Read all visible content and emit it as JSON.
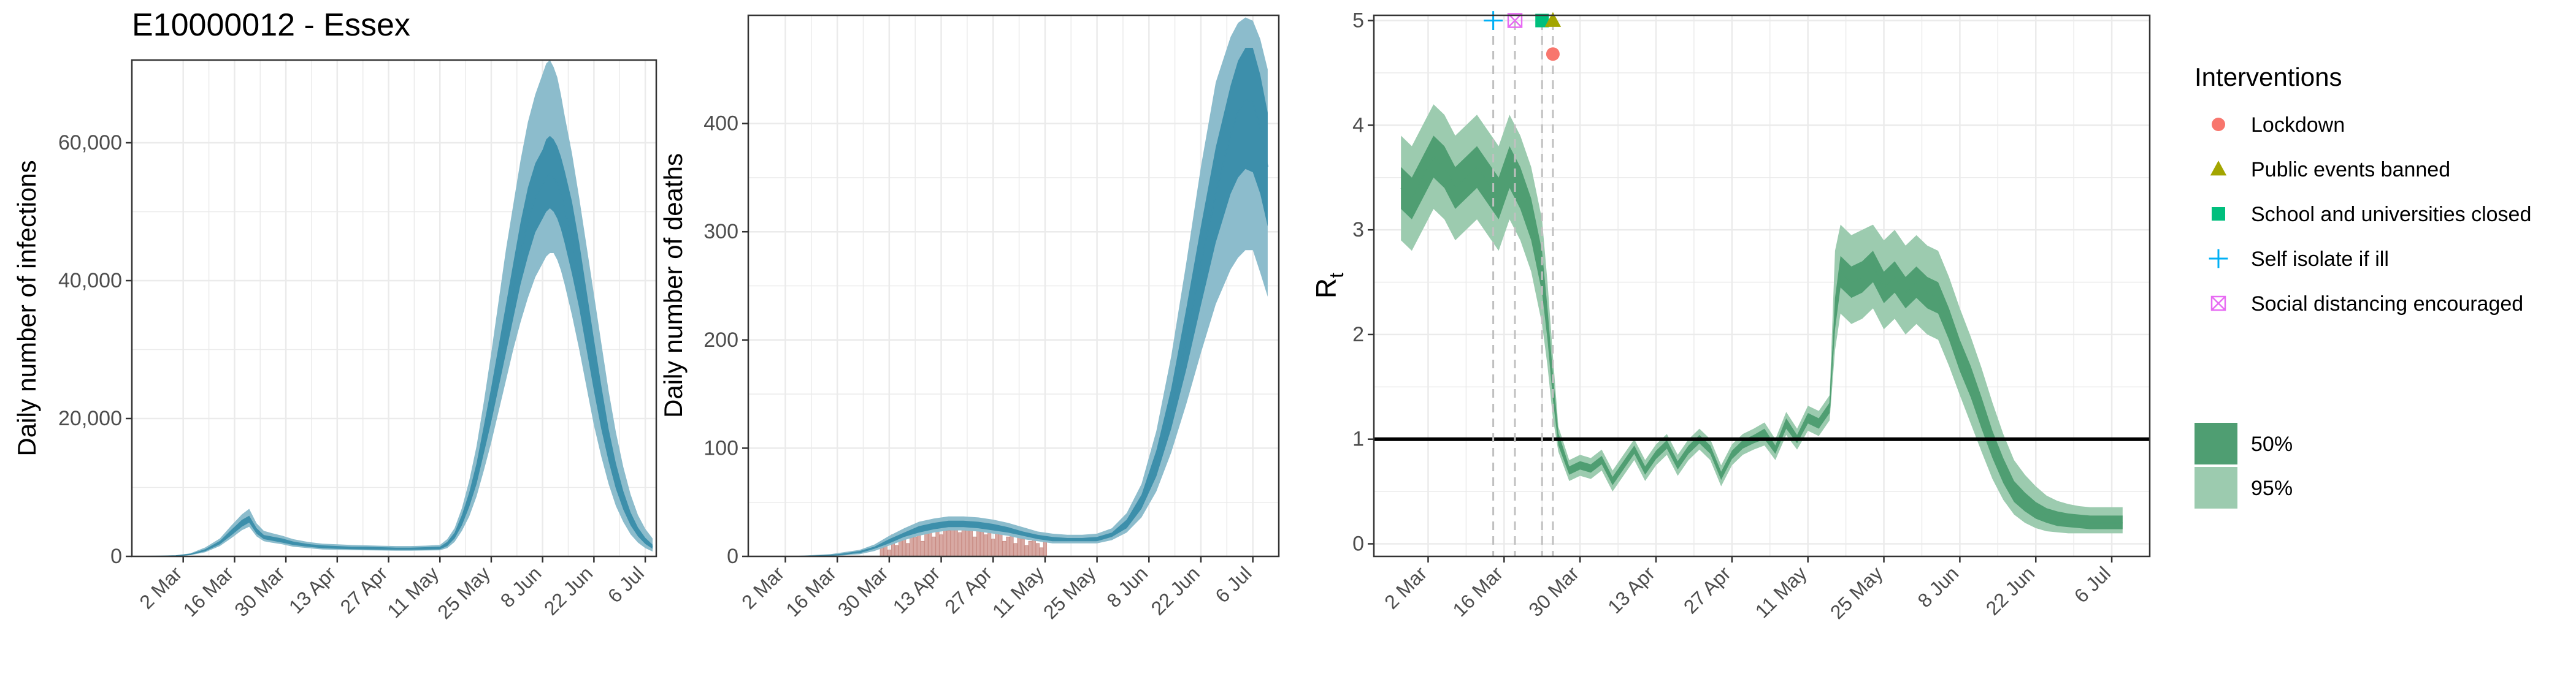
{
  "colors": {
    "infection_outer": "#8cbccc",
    "infection_inner": "#3d8fab",
    "deaths_bar": "#d8a9a3",
    "deaths_bar_outline": "#c88a82",
    "rt_outer": "#9ccbaf",
    "rt_inner": "#4f9e72",
    "grid": "#ebebeb",
    "rt_one_line": "#000000",
    "intervention_line": "#c0c0c0",
    "lockdown": "#f8766d",
    "public_events": "#a3a500",
    "schools": "#00bf7d",
    "self_isolate": "#00b0f6",
    "social_distancing": "#e76bf3"
  },
  "chart_data": [
    {
      "id": "infections",
      "type": "area",
      "title": "E10000012 - Essex",
      "xlabel": "",
      "ylabel": "Daily number of infections",
      "x_tick_labels": [
        "2 Mar",
        "16 Mar",
        "30 Mar",
        "13 Apr",
        "27 Apr",
        "11 May",
        "25 May",
        "8 Jun",
        "22 Jun",
        "6 Jul"
      ],
      "x_tick_days": [
        0,
        14,
        28,
        42,
        56,
        70,
        84,
        98,
        112,
        126
      ],
      "xlim_days": [
        -14,
        129
      ],
      "ylim": [
        0,
        72000
      ],
      "y_ticks": [
        0,
        20000,
        40000,
        60000
      ],
      "y_tick_labels": [
        "0",
        "20,000",
        "40,000",
        "60,000"
      ],
      "x_days": [
        -10,
        -6,
        -2,
        2,
        6,
        10,
        13,
        16,
        18,
        20,
        22,
        24,
        27,
        30,
        34,
        38,
        42,
        46,
        50,
        54,
        58,
        62,
        66,
        70,
        72,
        74,
        76,
        78,
        80,
        82,
        84,
        86,
        88,
        90,
        92,
        94,
        96,
        98,
        99,
        100,
        101,
        102,
        103,
        104,
        106,
        108,
        110,
        112,
        114,
        116,
        118,
        120,
        122,
        124,
        126,
        128
      ],
      "mean": [
        0,
        20,
        80,
        300,
        900,
        2000,
        3400,
        4800,
        5400,
        3700,
        2800,
        2600,
        2300,
        1900,
        1600,
        1400,
        1300,
        1200,
        1200,
        1150,
        1100,
        1100,
        1150,
        1200,
        1800,
        3000,
        5200,
        8200,
        12000,
        17000,
        22000,
        27500,
        33000,
        38500,
        44000,
        48500,
        52000,
        54000,
        55000,
        55500,
        55000,
        54000,
        52500,
        50500,
        46000,
        40500,
        34000,
        27500,
        21500,
        16000,
        11500,
        8000,
        5400,
        3500,
        2200,
        1400
      ],
      "ci50_low": [
        0,
        15,
        60,
        240,
        750,
        1750,
        3000,
        4300,
        4900,
        3300,
        2500,
        2300,
        2000,
        1650,
        1400,
        1200,
        1100,
        1050,
        1000,
        980,
        950,
        950,
        980,
        1020,
        1500,
        2600,
        4500,
        7200,
        10500,
        15000,
        19500,
        24500,
        29500,
        34500,
        39500,
        43500,
        47000,
        49000,
        50000,
        50500,
        50000,
        49000,
        47500,
        45500,
        41000,
        36000,
        30000,
        24000,
        18500,
        13800,
        9800,
        6800,
        4500,
        2900,
        1800,
        1100
      ],
      "ci50_high": [
        0,
        25,
        100,
        360,
        1050,
        2250,
        3800,
        5300,
        5900,
        4100,
        3100,
        2900,
        2600,
        2150,
        1800,
        1600,
        1500,
        1400,
        1400,
        1330,
        1270,
        1270,
        1330,
        1400,
        2100,
        3450,
        6000,
        9300,
        13500,
        19000,
        24500,
        30500,
        36500,
        42500,
        48500,
        53500,
        57000,
        59000,
        60500,
        61000,
        60500,
        59500,
        58000,
        56000,
        51500,
        45500,
        38500,
        31500,
        24800,
        18500,
        13500,
        9500,
        6400,
        4200,
        2700,
        1700
      ],
      "ci95_low": [
        0,
        10,
        40,
        180,
        600,
        1500,
        2600,
        3800,
        4300,
        2900,
        2200,
        2000,
        1750,
        1400,
        1200,
        1000,
        950,
        900,
        880,
        850,
        820,
        820,
        850,
        880,
        1200,
        2100,
        3700,
        5800,
        8700,
        12500,
        16500,
        21000,
        25500,
        30000,
        34000,
        37500,
        40500,
        42500,
        43500,
        44000,
        44000,
        43000,
        41500,
        39500,
        35000,
        30000,
        24500,
        19000,
        14500,
        10500,
        7300,
        5000,
        3200,
        2000,
        1200,
        700
      ],
      "ci95_high": [
        0,
        35,
        130,
        450,
        1300,
        2600,
        4400,
        6100,
        6900,
        4800,
        3700,
        3400,
        3000,
        2500,
        2100,
        1850,
        1750,
        1650,
        1600,
        1550,
        1500,
        1500,
        1560,
        1650,
        2500,
        4100,
        7000,
        11000,
        16000,
        22500,
        29500,
        37000,
        44500,
        51000,
        57500,
        63000,
        67000,
        70000,
        71500,
        72000,
        71000,
        69500,
        67000,
        64000,
        58500,
        52000,
        45000,
        38000,
        31000,
        24000,
        18000,
        13000,
        9000,
        6000,
        4000,
        2600
      ]
    },
    {
      "id": "deaths",
      "type": "area",
      "title": "",
      "xlabel": "",
      "ylabel": "Daily number of deaths",
      "x_tick_labels": [
        "2 Mar",
        "16 Mar",
        "30 Mar",
        "13 Apr",
        "27 Apr",
        "11 May",
        "25 May",
        "8 Jun",
        "22 Jun",
        "6 Jul"
      ],
      "x_tick_days": [
        0,
        14,
        28,
        42,
        56,
        70,
        84,
        98,
        112,
        126
      ],
      "xlim_days": [
        -10,
        133
      ],
      "ylim": [
        0,
        500
      ],
      "y_ticks": [
        0,
        100,
        200,
        300,
        400
      ],
      "y_tick_labels": [
        "0",
        "100",
        "200",
        "300",
        "400"
      ],
      "x_days": [
        0,
        6,
        12,
        16,
        20,
        24,
        28,
        32,
        36,
        40,
        44,
        48,
        52,
        56,
        60,
        64,
        68,
        72,
        76,
        80,
        84,
        88,
        92,
        96,
        100,
        104,
        108,
        112,
        116,
        120,
        122,
        124,
        126,
        128,
        130
      ],
      "mean": [
        0,
        0,
        1,
        2,
        4,
        8,
        14,
        20,
        25,
        28,
        30,
        30,
        29,
        27,
        24,
        21,
        18,
        16,
        15,
        15,
        16,
        20,
        30,
        50,
        85,
        135,
        200,
        270,
        335,
        390,
        410,
        422,
        420,
        395,
        360
      ],
      "ci50_low": [
        0,
        0,
        1,
        2,
        3,
        7,
        12,
        18,
        22,
        25,
        27,
        27,
        26,
        24,
        22,
        19,
        16,
        14,
        14,
        14,
        14,
        18,
        26,
        44,
        74,
        118,
        172,
        232,
        290,
        335,
        350,
        358,
        355,
        335,
        305
      ],
      "ci50_high": [
        0,
        0,
        1,
        3,
        5,
        9,
        16,
        22,
        28,
        31,
        33,
        33,
        32,
        30,
        27,
        23,
        20,
        18,
        17,
        17,
        18,
        22,
        34,
        57,
        98,
        155,
        228,
        305,
        378,
        435,
        458,
        470,
        470,
        445,
        410
      ],
      "ci95_low": [
        0,
        0,
        0,
        1,
        2,
        5,
        10,
        15,
        19,
        22,
        24,
        24,
        23,
        21,
        19,
        16,
        14,
        12,
        12,
        12,
        12,
        15,
        22,
        36,
        60,
        96,
        140,
        188,
        233,
        265,
        276,
        283,
        283,
        262,
        240
      ],
      "ci95_high": [
        0,
        1,
        2,
        4,
        6,
        11,
        19,
        26,
        32,
        35,
        37,
        37,
        36,
        34,
        31,
        27,
        23,
        21,
        20,
        20,
        21,
        26,
        40,
        67,
        116,
        185,
        270,
        360,
        438,
        480,
        493,
        498,
        495,
        478,
        450
      ],
      "observed_bars": {
        "days": [
          26,
          27,
          28,
          29,
          30,
          31,
          32,
          33,
          34,
          35,
          36,
          37,
          38,
          39,
          40,
          41,
          42,
          43,
          44,
          45,
          46,
          47,
          48,
          49,
          50,
          51,
          52,
          53,
          54,
          55,
          56,
          57,
          58,
          59,
          60,
          61,
          62,
          63,
          64,
          65,
          66,
          67,
          68,
          69,
          70
        ],
        "values": [
          8,
          14,
          6,
          20,
          10,
          16,
          22,
          12,
          25,
          18,
          28,
          14,
          30,
          22,
          18,
          26,
          20,
          32,
          24,
          28,
          30,
          22,
          35,
          26,
          28,
          18,
          30,
          24,
          20,
          28,
          16,
          22,
          26,
          14,
          18,
          24,
          12,
          20,
          16,
          10,
          14,
          18,
          12,
          8,
          14
        ]
      }
    },
    {
      "id": "rt",
      "type": "area",
      "title": "",
      "xlabel": "",
      "ylabel": "R",
      "ylabel_subscript": "t",
      "x_tick_labels": [
        "2 Mar",
        "16 Mar",
        "30 Mar",
        "13 Apr",
        "27 Apr",
        "11 May",
        "25 May",
        "8 Jun",
        "22 Jun",
        "6 Jul"
      ],
      "x_tick_days": [
        0,
        14,
        28,
        42,
        56,
        70,
        84,
        98,
        112,
        126
      ],
      "xlim_days": [
        -10,
        133
      ],
      "ylim": [
        -0.12,
        5.05
      ],
      "y_ticks": [
        0,
        1,
        2,
        3,
        4,
        5
      ],
      "y_tick_labels": [
        "0",
        "1",
        "2",
        "3",
        "4",
        "5"
      ],
      "reference_line_y": 1,
      "x_days": [
        -5,
        -3,
        -1,
        1,
        3,
        5,
        7,
        9,
        11,
        13,
        15,
        17,
        19,
        21,
        22,
        23,
        24,
        25,
        26,
        28,
        30,
        32,
        34,
        36,
        38,
        40,
        42,
        44,
        46,
        48,
        50,
        52,
        54,
        56,
        58,
        60,
        62,
        64,
        66,
        68,
        70,
        72,
        74,
        75,
        76,
        78,
        80,
        82,
        84,
        86,
        88,
        90,
        92,
        94,
        96,
        98,
        100,
        102,
        104,
        106,
        108,
        110,
        112,
        114,
        116,
        118,
        120,
        122,
        124,
        126,
        128
      ],
      "mean": [
        3.4,
        3.3,
        3.5,
        3.7,
        3.6,
        3.4,
        3.5,
        3.6,
        3.45,
        3.3,
        3.6,
        3.4,
        3.1,
        2.6,
        2.1,
        1.5,
        1.0,
        0.85,
        0.7,
        0.75,
        0.72,
        0.8,
        0.6,
        0.75,
        0.9,
        0.7,
        0.85,
        0.95,
        0.75,
        0.9,
        1.0,
        0.9,
        0.65,
        0.85,
        0.95,
        1.0,
        1.05,
        0.9,
        1.15,
        1.0,
        1.2,
        1.15,
        1.3,
        2.2,
        2.6,
        2.5,
        2.55,
        2.65,
        2.45,
        2.55,
        2.4,
        2.5,
        2.4,
        2.35,
        2.1,
        1.8,
        1.55,
        1.25,
        0.95,
        0.7,
        0.5,
        0.4,
        0.32,
        0.27,
        0.24,
        0.22,
        0.21,
        0.2,
        0.2,
        0.2,
        0.2
      ],
      "ci50_low": [
        3.2,
        3.1,
        3.3,
        3.5,
        3.4,
        3.2,
        3.3,
        3.4,
        3.25,
        3.1,
        3.4,
        3.2,
        2.9,
        2.4,
        1.95,
        1.38,
        0.94,
        0.8,
        0.66,
        0.71,
        0.68,
        0.76,
        0.56,
        0.71,
        0.86,
        0.66,
        0.81,
        0.91,
        0.71,
        0.86,
        0.96,
        0.86,
        0.61,
        0.81,
        0.91,
        0.96,
        1.0,
        0.86,
        1.1,
        0.96,
        1.15,
        1.1,
        1.25,
        2.05,
        2.45,
        2.35,
        2.4,
        2.5,
        2.3,
        2.4,
        2.25,
        2.35,
        2.25,
        2.2,
        1.95,
        1.65,
        1.4,
        1.1,
        0.82,
        0.58,
        0.4,
        0.31,
        0.24,
        0.2,
        0.17,
        0.16,
        0.15,
        0.14,
        0.14,
        0.14,
        0.14
      ],
      "ci50_high": [
        3.6,
        3.5,
        3.7,
        3.9,
        3.8,
        3.6,
        3.7,
        3.8,
        3.65,
        3.5,
        3.8,
        3.6,
        3.3,
        2.8,
        2.25,
        1.62,
        1.06,
        0.9,
        0.74,
        0.79,
        0.76,
        0.84,
        0.64,
        0.79,
        0.94,
        0.74,
        0.89,
        0.99,
        0.79,
        0.94,
        1.04,
        0.94,
        0.69,
        0.89,
        0.99,
        1.04,
        1.1,
        0.94,
        1.2,
        1.04,
        1.25,
        1.2,
        1.35,
        2.35,
        2.75,
        2.65,
        2.7,
        2.8,
        2.6,
        2.7,
        2.55,
        2.65,
        2.55,
        2.5,
        2.25,
        1.95,
        1.7,
        1.4,
        1.08,
        0.82,
        0.6,
        0.49,
        0.4,
        0.34,
        0.31,
        0.29,
        0.28,
        0.27,
        0.27,
        0.27,
        0.27
      ],
      "ci95_low": [
        2.9,
        2.8,
        3.0,
        3.2,
        3.1,
        2.9,
        3.0,
        3.1,
        2.95,
        2.8,
        3.1,
        2.9,
        2.6,
        2.1,
        1.7,
        1.2,
        0.88,
        0.74,
        0.6,
        0.65,
        0.62,
        0.7,
        0.5,
        0.65,
        0.8,
        0.6,
        0.75,
        0.85,
        0.65,
        0.8,
        0.9,
        0.8,
        0.55,
        0.75,
        0.85,
        0.9,
        0.94,
        0.8,
        1.04,
        0.9,
        1.08,
        1.03,
        1.18,
        1.85,
        2.2,
        2.1,
        2.15,
        2.25,
        2.05,
        2.15,
        2.0,
        2.1,
        2.0,
        1.95,
        1.7,
        1.42,
        1.15,
        0.88,
        0.62,
        0.42,
        0.28,
        0.2,
        0.15,
        0.12,
        0.11,
        0.1,
        0.1,
        0.1,
        0.1,
        0.1,
        0.1
      ],
      "ci95_high": [
        3.9,
        3.8,
        4.0,
        4.2,
        4.1,
        3.9,
        4.0,
        4.1,
        3.95,
        3.8,
        4.1,
        3.9,
        3.6,
        3.1,
        2.5,
        1.8,
        1.12,
        0.96,
        0.8,
        0.85,
        0.82,
        0.9,
        0.7,
        0.85,
        1.0,
        0.8,
        0.95,
        1.05,
        0.85,
        1.0,
        1.1,
        1.0,
        0.75,
        0.95,
        1.05,
        1.1,
        1.16,
        1.0,
        1.26,
        1.1,
        1.32,
        1.27,
        1.42,
        2.8,
        3.05,
        2.95,
        3.0,
        3.05,
        2.9,
        3.0,
        2.85,
        2.95,
        2.85,
        2.8,
        2.55,
        2.25,
        1.98,
        1.68,
        1.35,
        1.05,
        0.8,
        0.66,
        0.55,
        0.46,
        0.41,
        0.38,
        0.36,
        0.35,
        0.35,
        0.35,
        0.35
      ],
      "interventions": [
        {
          "key": "self_isolate",
          "day": 12,
          "y": 5.0,
          "shape": "plus"
        },
        {
          "key": "social_distancing",
          "day": 16,
          "y": 5.0,
          "shape": "squarex"
        },
        {
          "key": "schools",
          "day": 21,
          "y": 5.0,
          "shape": "square"
        },
        {
          "key": "public_events",
          "day": 23,
          "y": 5.0,
          "shape": "triangle"
        },
        {
          "key": "lockdown",
          "day": 23,
          "y": 4.68,
          "shape": "circle"
        }
      ]
    }
  ],
  "legend": {
    "interventions_title": "Interventions",
    "items": [
      {
        "label": "Lockdown",
        "shape": "circle",
        "color_key": "lockdown"
      },
      {
        "label": "Public events banned",
        "shape": "triangle",
        "color_key": "public_events"
      },
      {
        "label": "School and universities closed",
        "shape": "square",
        "color_key": "schools"
      },
      {
        "label": "Self isolate if ill",
        "shape": "plus",
        "color_key": "self_isolate"
      },
      {
        "label": "Social distancing encouraged",
        "shape": "squarex",
        "color_key": "social_distancing"
      }
    ],
    "ci_items": [
      {
        "label": "50%",
        "color_key": "rt_inner"
      },
      {
        "label": "95%",
        "color_key": "rt_outer"
      }
    ]
  }
}
